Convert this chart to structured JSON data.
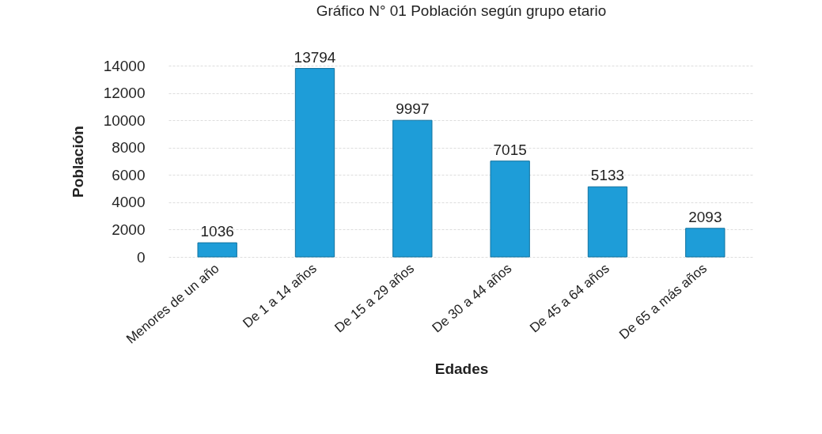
{
  "chart_data": {
    "type": "bar",
    "title": "Gráfico N° 01 Población según grupo etario",
    "xlabel": "Edades",
    "ylabel": "Población",
    "categories": [
      "Menores de un año",
      "De 1 a 14 años",
      "De 15 a 29 años",
      "De 30 a 44 años",
      "De 45 a 64 años",
      "De 65 a más años"
    ],
    "values": [
      1036,
      13794,
      9997,
      7015,
      5133,
      2093
    ],
    "color": "#1e9dd8",
    "ylim": [
      0,
      14000
    ],
    "yticks": [
      0,
      2000,
      4000,
      6000,
      8000,
      10000,
      12000,
      14000
    ],
    "grid": "y",
    "data_labels": true
  }
}
